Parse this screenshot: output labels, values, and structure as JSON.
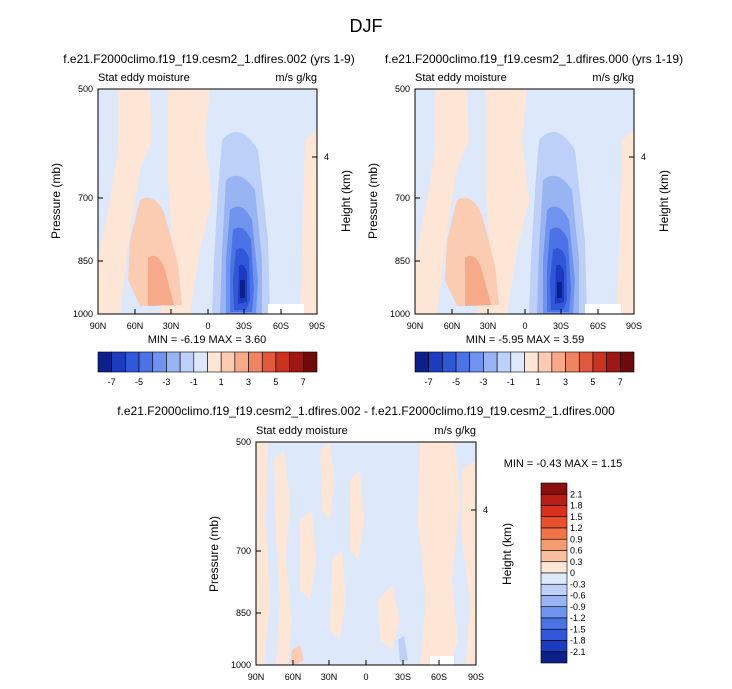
{
  "figure": {
    "title": "DJF"
  },
  "chart_data": [
    {
      "type": "heatmap",
      "title": "f.e21.F2000climo.f19_f19.cesm2_1.dfires.002 (yrs 1-9)",
      "left_label": "Stat eddy moisture",
      "right_label": "m/s g/kg",
      "xlabel": "",
      "ylabel": "Pressure (mb)",
      "ylabel_right": "Height (km)",
      "x_ticks": [
        "90N",
        "60N",
        "30N",
        "0",
        "30S",
        "60S",
        "90S"
      ],
      "y_ticks": [
        "500",
        "700",
        "850",
        "1000"
      ],
      "y_ticks_right": [
        "4"
      ],
      "ylim": [
        1000,
        500
      ],
      "min_max_text": "MIN = -6.19  MAX =  3.60",
      "colorbar": {
        "orientation": "horizontal",
        "labels": [
          "-7",
          "-5",
          "-3",
          "-1",
          "1",
          "3",
          "5",
          "7"
        ],
        "colors": [
          "#0c1f8a",
          "#1d3bc0",
          "#2f57d8",
          "#4b73e6",
          "#6f93ee",
          "#98b4f3",
          "#bdd0f7",
          "#dde8fb",
          "#fde6d6",
          "#fbcbb2",
          "#f6aa8a",
          "#ee8462",
          "#e0583d",
          "#c9321f",
          "#9e1712",
          "#6e0a0a"
        ]
      }
    },
    {
      "type": "heatmap",
      "title": "f.e21.F2000climo.f19_f19.cesm2_1.dfires.000 (yrs 1-19)",
      "left_label": "Stat eddy moisture",
      "right_label": "m/s g/kg",
      "xlabel": "",
      "ylabel": "Pressure (mb)",
      "ylabel_right": "Height (km)",
      "x_ticks": [
        "90N",
        "60N",
        "30N",
        "0",
        "30S",
        "60S",
        "90S"
      ],
      "y_ticks": [
        "500",
        "700",
        "850",
        "1000"
      ],
      "y_ticks_right": [
        "4"
      ],
      "ylim": [
        1000,
        500
      ],
      "min_max_text": "MIN = -5.95  MAX =  3.59",
      "colorbar": {
        "orientation": "horizontal",
        "labels": [
          "-7",
          "-5",
          "-3",
          "-1",
          "1",
          "3",
          "5",
          "7"
        ],
        "colors": [
          "#0c1f8a",
          "#1d3bc0",
          "#2f57d8",
          "#4b73e6",
          "#6f93ee",
          "#98b4f3",
          "#bdd0f7",
          "#dde8fb",
          "#fde6d6",
          "#fbcbb2",
          "#f6aa8a",
          "#ee8462",
          "#e0583d",
          "#c9321f",
          "#9e1712",
          "#6e0a0a"
        ]
      }
    },
    {
      "type": "heatmap",
      "title": "f.e21.F2000climo.f19_f19.cesm2_1.dfires.002 - f.e21.F2000climo.f19_f19.cesm2_1.dfires.000",
      "left_label": "Stat eddy moisture",
      "right_label": "m/s g/kg",
      "xlabel": "",
      "ylabel": "Pressure (mb)",
      "ylabel_right": "Height (km)",
      "x_ticks": [
        "90N",
        "60N",
        "30N",
        "0",
        "30S",
        "60S",
        "90S"
      ],
      "y_ticks": [
        "500",
        "700",
        "850",
        "1000"
      ],
      "y_ticks_right": [
        "4"
      ],
      "ylim": [
        1000,
        500
      ],
      "min_max_text": "MIN = -0.43  MAX =  1.15",
      "colorbar": {
        "orientation": "vertical",
        "labels": [
          "2.1",
          "1.8",
          "1.5",
          "1.2",
          "0.9",
          "0.6",
          "0.3",
          "0",
          "-0.3",
          "-0.6",
          "-0.9",
          "-1.2",
          "-1.5",
          "-1.8",
          "-2.1"
        ],
        "colors": [
          "#8a0f0f",
          "#b81e14",
          "#d9321c",
          "#e9502f",
          "#f27348",
          "#f69a72",
          "#f9bf9f",
          "#fde6d6",
          "#dde8fb",
          "#bdd0f7",
          "#98b4f3",
          "#6f93ee",
          "#4b73e6",
          "#2f57d8",
          "#1d3bc0",
          "#0c1f8a"
        ]
      }
    }
  ]
}
